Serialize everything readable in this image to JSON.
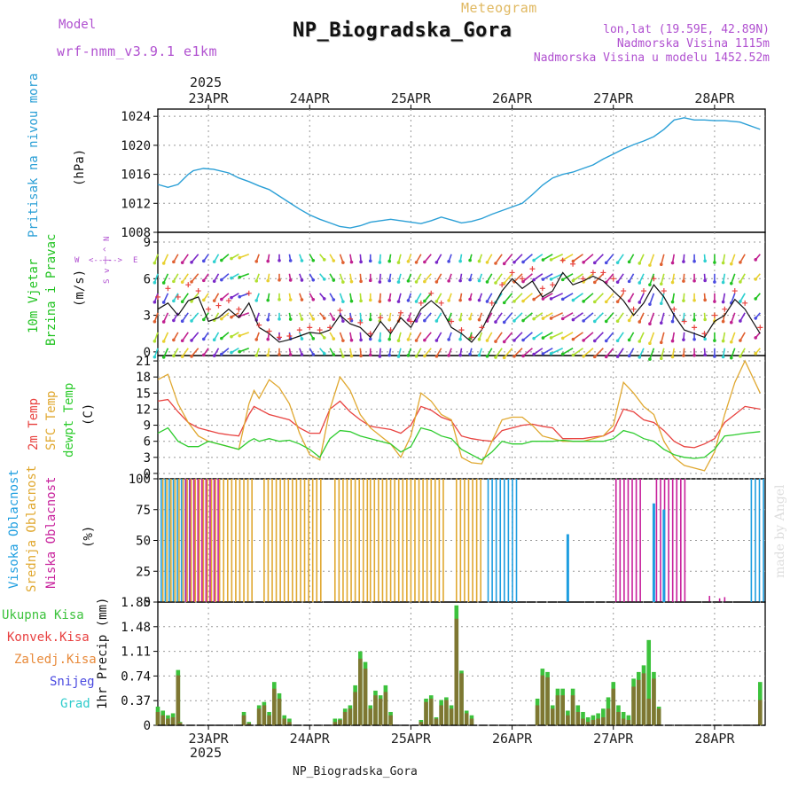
{
  "header": {
    "model_label": "Model",
    "model_name": "wrf-nmm_v3.9.1 e1km",
    "meteogram_label": "Meteogram",
    "station": "NP_Biogradska_Gora",
    "lonlat": "lon,lat (19.59E, 42.89N)",
    "elevation": "Nadmorska Visina 1115m",
    "model_elevation": "Nadmorska Visina u modelu 1452.52m",
    "watermark": "made by Angel",
    "footer_station": "NP_Biogradska_Gora"
  },
  "colors": {
    "pressure": "#2a9fd6",
    "wind_label": "#22c322",
    "temp2m": "#e8423f",
    "sfc": "#e0a830",
    "dewpt": "#2ecc2e",
    "cloud_high": "#1e9ee0",
    "cloud_mid": "#e0a830",
    "cloud_low": "#c8219c",
    "precip_total": "#3cc23c",
    "precip_conv": "#e84040",
    "precip_frozen": "#e88a3a",
    "snow": "#4a4ae0",
    "grad": "#2ecccc",
    "meta": "#b050d0",
    "meteogram_title": "#e0b860"
  },
  "chart_data": [
    {
      "type": "line",
      "panel": "pressure",
      "ylabel_lines": [
        "Pritisak na nivou mora",
        "(hPa)"
      ],
      "ylim": [
        1008,
        1025
      ],
      "yticks": [
        1008,
        1012,
        1016,
        1020,
        1024
      ],
      "x_days": [
        0.0,
        0.1,
        0.2,
        0.3,
        0.35,
        0.45,
        0.55,
        0.7,
        0.8,
        0.9,
        1.0,
        1.1,
        1.2,
        1.3,
        1.4,
        1.5,
        1.6,
        1.7,
        1.8,
        1.9,
        2.0,
        2.1,
        2.2,
        2.3,
        2.4,
        2.5,
        2.6,
        2.7,
        2.8,
        2.9,
        3.0,
        3.1,
        3.2,
        3.3,
        3.4,
        3.5,
        3.6,
        3.7,
        3.8,
        3.9,
        4.0,
        4.1,
        4.2,
        4.3,
        4.4,
        4.5,
        4.6,
        4.7,
        4.8,
        4.9,
        5.0,
        5.1,
        5.2,
        5.3,
        5.4,
        5.5,
        5.6,
        5.75,
        5.95
      ],
      "values": [
        1014.6,
        1014.2,
        1014.6,
        1016.0,
        1016.5,
        1016.8,
        1016.7,
        1016.2,
        1015.5,
        1015.0,
        1014.4,
        1013.9,
        1013.0,
        1012.1,
        1011.2,
        1010.4,
        1009.8,
        1009.3,
        1008.8,
        1008.6,
        1008.9,
        1009.4,
        1009.6,
        1009.8,
        1009.6,
        1009.4,
        1009.2,
        1009.6,
        1010.1,
        1009.7,
        1009.3,
        1009.5,
        1009.9,
        1010.5,
        1011.0,
        1011.5,
        1012.0,
        1013.2,
        1014.5,
        1015.5,
        1016.0,
        1016.3,
        1016.8,
        1017.3,
        1018.1,
        1018.8,
        1019.5,
        1020.1,
        1020.6,
        1021.2,
        1022.2,
        1023.5,
        1023.8,
        1023.5,
        1023.5,
        1023.4,
        1023.4,
        1023.2,
        1022.2
      ]
    },
    {
      "type": "line",
      "panel": "wind",
      "ylabel_lines": [
        "10m Vjetar",
        "Brzina i Pravac",
        "(m/s)"
      ],
      "compass": [
        "W",
        "<--|-->",
        "E"
      ],
      "compass_v": [
        "N",
        "^",
        "|",
        "v",
        "S"
      ],
      "ylim": [
        -0.3,
        9.8
      ],
      "yticks": [
        0,
        3,
        6,
        9
      ],
      "x_days": [
        0.0,
        0.1,
        0.2,
        0.3,
        0.4,
        0.5,
        0.6,
        0.7,
        0.8,
        0.9,
        1.0,
        1.1,
        1.2,
        1.3,
        1.4,
        1.5,
        1.6,
        1.7,
        1.8,
        1.9,
        2.0,
        2.1,
        2.2,
        2.3,
        2.4,
        2.5,
        2.6,
        2.7,
        2.8,
        2.9,
        3.0,
        3.1,
        3.2,
        3.3,
        3.4,
        3.5,
        3.6,
        3.7,
        3.8,
        3.9,
        4.0,
        4.1,
        4.2,
        4.3,
        4.4,
        4.5,
        4.6,
        4.7,
        4.8,
        4.9,
        5.0,
        5.1,
        5.2,
        5.3,
        5.4,
        5.5,
        5.6,
        5.7,
        5.8,
        5.95
      ],
      "speed": [
        3.5,
        4.0,
        3.0,
        4.2,
        4.5,
        2.5,
        2.8,
        3.5,
        2.8,
        4.0,
        2.0,
        1.5,
        0.8,
        1.0,
        1.3,
        1.6,
        1.5,
        1.8,
        3.0,
        2.3,
        2.0,
        1.2,
        2.5,
        1.5,
        2.8,
        2.0,
        3.5,
        4.2,
        3.5,
        2.0,
        1.5,
        0.8,
        1.8,
        3.5,
        5.0,
        6.0,
        5.2,
        5.8,
        4.5,
        5.0,
        6.5,
        5.5,
        5.8,
        6.2,
        5.8,
        5.0,
        4.2,
        3.0,
        4.0,
        5.5,
        4.5,
        3.0,
        1.8,
        1.5,
        1.2,
        2.5,
        3.0,
        4.3,
        3.5,
        1.5
      ],
      "gust": [
        4.5,
        5.2,
        4.5,
        5.5,
        5.0,
        3.5,
        3.8,
        4.2,
        3.5,
        4.8,
        2.2,
        1.7,
        1.2,
        1.3,
        1.8,
        2.0,
        1.8,
        2.0,
        3.4,
        2.7,
        2.4,
        1.5,
        2.8,
        1.8,
        3.2,
        2.5,
        4.0,
        4.8,
        4.0,
        2.5,
        1.8,
        1.2,
        2.0,
        4.0,
        5.5,
        6.5,
        6.0,
        6.8,
        5.2,
        5.5,
        7.5,
        7.2,
        6.0,
        6.5,
        6.5,
        6.0,
        5.0,
        3.5,
        5.0,
        6.0,
        5.0,
        3.5,
        2.5,
        2.0,
        1.5,
        3.0,
        3.5,
        5.0,
        4.0,
        2.0
      ],
      "dir_deg": [
        200,
        205,
        210,
        215,
        220,
        215,
        210,
        230,
        240,
        250,
        200,
        190,
        180,
        170,
        160,
        150,
        140,
        150,
        160,
        170,
        175,
        180,
        185,
        190,
        195,
        200,
        210,
        220,
        210,
        200,
        190,
        195,
        200,
        210,
        215,
        220,
        225,
        230,
        235,
        240,
        245,
        240,
        235,
        230,
        225,
        220,
        215,
        210,
        205,
        200,
        195,
        190,
        185,
        180,
        175,
        180,
        190,
        200,
        210,
        220
      ]
    },
    {
      "type": "line",
      "panel": "temperature",
      "ylabel_lines": [
        "2m Temp",
        "SFC Temp",
        "dewpt Temp",
        "(C)"
      ],
      "ylim": [
        -1,
        22
      ],
      "yticks": [
        0,
        3,
        6,
        9,
        12,
        15,
        18,
        21
      ],
      "x_days": [
        0.0,
        0.1,
        0.2,
        0.3,
        0.4,
        0.5,
        0.6,
        0.7,
        0.8,
        0.9,
        0.95,
        1.0,
        1.1,
        1.2,
        1.3,
        1.4,
        1.5,
        1.6,
        1.7,
        1.8,
        1.9,
        2.0,
        2.1,
        2.2,
        2.3,
        2.4,
        2.5,
        2.6,
        2.7,
        2.8,
        2.9,
        3.0,
        3.1,
        3.2,
        3.3,
        3.4,
        3.5,
        3.6,
        3.7,
        3.8,
        3.9,
        4.0,
        4.1,
        4.2,
        4.3,
        4.4,
        4.5,
        4.6,
        4.7,
        4.8,
        4.9,
        5.0,
        5.1,
        5.2,
        5.3,
        5.4,
        5.5,
        5.6,
        5.7,
        5.8,
        5.95
      ],
      "series": [
        {
          "name": "2m Temp",
          "values": [
            13.5,
            13.8,
            11.5,
            9.5,
            8.5,
            8.0,
            7.5,
            7.2,
            7.0,
            11.0,
            12.5,
            12.0,
            11.0,
            10.5,
            10.0,
            8.5,
            7.5,
            7.5,
            12.0,
            13.5,
            11.5,
            10.0,
            8.8,
            8.5,
            8.2,
            7.5,
            9.0,
            12.5,
            11.8,
            10.5,
            9.8,
            7.0,
            6.5,
            6.2,
            6.0,
            8.0,
            8.5,
            9.0,
            9.2,
            8.8,
            8.5,
            6.5,
            6.5,
            6.5,
            6.8,
            7.0,
            8.0,
            12.0,
            11.5,
            10.0,
            9.5,
            8.0,
            6.0,
            5.0,
            4.8,
            5.5,
            6.5,
            9.5,
            11.0,
            12.5,
            12.0
          ]
        },
        {
          "name": "SFC Temp",
          "values": [
            17.5,
            18.5,
            13.0,
            9.5,
            7.0,
            6.0,
            5.5,
            5.0,
            4.5,
            13.0,
            15.5,
            14.0,
            17.5,
            16.0,
            13.0,
            7.5,
            3.5,
            2.5,
            12.0,
            18.0,
            15.5,
            11.0,
            8.5,
            7.0,
            5.5,
            3.0,
            7.0,
            15.0,
            13.5,
            11.0,
            10.0,
            3.0,
            2.0,
            1.8,
            6.0,
            10.0,
            10.5,
            10.5,
            9.0,
            7.0,
            6.5,
            6.0,
            6.0,
            6.0,
            6.5,
            7.0,
            9.0,
            17.0,
            15.0,
            12.5,
            11.0,
            6.0,
            3.0,
            1.5,
            1.0,
            0.5,
            4.0,
            11.0,
            17.0,
            21.0,
            15.0
          ]
        },
        {
          "name": "dewpt Temp",
          "values": [
            7.5,
            8.5,
            6.0,
            5.0,
            5.0,
            6.0,
            5.5,
            5.0,
            4.5,
            6.0,
            6.5,
            6.0,
            6.5,
            6.0,
            6.2,
            5.5,
            4.5,
            3.0,
            6.5,
            8.0,
            7.8,
            7.0,
            6.5,
            6.0,
            5.5,
            4.0,
            5.0,
            8.5,
            8.0,
            7.0,
            6.5,
            4.5,
            3.5,
            2.5,
            4.0,
            6.0,
            5.5,
            5.5,
            6.0,
            6.0,
            6.0,
            6.2,
            6.0,
            6.0,
            6.0,
            6.0,
            6.5,
            8.0,
            7.5,
            6.5,
            6.0,
            4.5,
            3.5,
            3.0,
            2.8,
            3.0,
            4.5,
            7.0,
            7.2,
            7.5,
            7.8
          ]
        }
      ]
    },
    {
      "type": "bar",
      "panel": "clouds",
      "ylabel_lines": [
        "Visoka Oblacnost",
        "Srednja Oblacnost",
        "Niska Oblacnost",
        "(%)"
      ],
      "ylim": [
        0,
        100
      ],
      "yticks": [
        0,
        25,
        50,
        75,
        100
      ],
      "high_ranges": [
        [
          0.02,
          0.32
        ],
        [
          3.25,
          3.55
        ],
        [
          5.85,
          6.0
        ]
      ],
      "mid_ranges": [
        [
          0.05,
          0.95
        ],
        [
          1.05,
          1.65
        ],
        [
          1.75,
          2.1
        ],
        [
          2.1,
          2.85
        ],
        [
          2.95,
          3.2
        ]
      ],
      "low_ranges": [
        [
          0.25,
          0.6
        ],
        [
          4.5,
          4.75
        ],
        [
          4.9,
          5.2
        ]
      ],
      "extra_high_bars": [
        [
          4.05,
          55
        ],
        [
          4.9,
          80
        ],
        [
          5.0,
          75
        ]
      ],
      "extra_low_bars": [
        [
          5.45,
          5
        ],
        [
          5.55,
          3
        ],
        [
          5.6,
          4
        ]
      ]
    },
    {
      "type": "bar",
      "panel": "precip",
      "ylabel_lines": [
        "1hr Precip (mm)"
      ],
      "legend": [
        "Ukupna Kisa",
        "Konvek.Kisa",
        "Zaledj.Kisa",
        "Snijeg",
        "Grad"
      ],
      "ylim": [
        0,
        1.85
      ],
      "yticks": [
        0,
        0.37,
        0.74,
        1.11,
        1.48,
        1.85
      ],
      "x_days": [
        0.0,
        0.05,
        0.1,
        0.15,
        0.2,
        0.22,
        0.85,
        0.9,
        1.0,
        1.05,
        1.1,
        1.15,
        1.2,
        1.25,
        1.3,
        1.75,
        1.8,
        1.85,
        1.9,
        1.95,
        2.0,
        2.05,
        2.1,
        2.15,
        2.2,
        2.25,
        2.3,
        2.6,
        2.65,
        2.7,
        2.75,
        2.8,
        2.85,
        2.9,
        2.95,
        3.0,
        3.05,
        3.1,
        3.75,
        3.8,
        3.85,
        3.9,
        3.95,
        4.0,
        4.05,
        4.1,
        4.15,
        4.2,
        4.25,
        4.3,
        4.35,
        4.4,
        4.45,
        4.5,
        4.55,
        4.6,
        4.65,
        4.7,
        4.75,
        4.8,
        4.85,
        4.9,
        4.95,
        5.95
      ],
      "totals": [
        0.28,
        0.22,
        0.15,
        0.18,
        0.83,
        0.05,
        0.2,
        0.05,
        0.3,
        0.35,
        0.2,
        0.65,
        0.48,
        0.15,
        0.1,
        0.1,
        0.1,
        0.25,
        0.3,
        0.6,
        1.11,
        0.95,
        0.3,
        0.52,
        0.45,
        0.6,
        0.2,
        0.08,
        0.4,
        0.45,
        0.12,
        0.38,
        0.42,
        0.3,
        1.8,
        0.82,
        0.22,
        0.15,
        0.4,
        0.85,
        0.8,
        0.3,
        0.55,
        0.55,
        0.22,
        0.55,
        0.3,
        0.2,
        0.12,
        0.15,
        0.18,
        0.25,
        0.42,
        0.65,
        0.3,
        0.2,
        0.15,
        0.7,
        0.8,
        0.9,
        1.28,
        0.8,
        0.28,
        0.65
      ],
      "convective": [
        0.2,
        0.15,
        0.1,
        0.12,
        0.75,
        0.04,
        0.15,
        0.03,
        0.25,
        0.3,
        0.15,
        0.55,
        0.4,
        0.1,
        0.05,
        0.05,
        0.08,
        0.2,
        0.25,
        0.5,
        1.0,
        0.85,
        0.25,
        0.45,
        0.4,
        0.5,
        0.15,
        0.05,
        0.35,
        0.4,
        0.1,
        0.3,
        0.38,
        0.25,
        1.6,
        0.78,
        0.18,
        0.1,
        0.3,
        0.75,
        0.72,
        0.25,
        0.45,
        0.45,
        0.15,
        0.45,
        0.2,
        0.1,
        0.05,
        0.08,
        0.1,
        0.12,
        0.25,
        0.55,
        0.2,
        0.1,
        0.08,
        0.58,
        0.68,
        0.78,
        0.4,
        0.7,
        0.25,
        0.38
      ]
    }
  ],
  "time_axis": {
    "top_year": "2025",
    "bottom_year": "2025",
    "day_labels": [
      "23APR",
      "24APR",
      "25APR",
      "26APR",
      "27APR",
      "28APR"
    ],
    "x_range_days": [
      0.0,
      6.0
    ]
  }
}
